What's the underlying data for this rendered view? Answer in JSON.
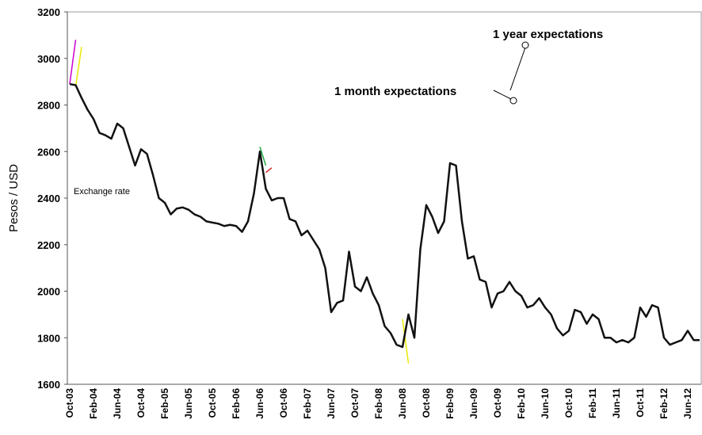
{
  "chart_data": {
    "type": "line",
    "y_label": "Pesos / USD",
    "annotations": [
      "Exchange rate",
      "1 year expectations",
      "1 month expectations"
    ],
    "ylim": [
      1600,
      3200
    ],
    "yticks": [
      1600,
      1800,
      2000,
      2200,
      2400,
      2600,
      2800,
      3000,
      3200
    ],
    "categories": [
      "Oct-03",
      null,
      null,
      null,
      "Feb-04",
      null,
      null,
      null,
      "Jun-04",
      null,
      null,
      null,
      "Oct-04",
      null,
      null,
      null,
      "Feb-05",
      null,
      null,
      null,
      "Jun-05",
      null,
      null,
      null,
      "Oct-05",
      null,
      null,
      null,
      "Feb-06",
      null,
      null,
      null,
      "Jun-06",
      null,
      null,
      null,
      "Oct-06",
      null,
      null,
      null,
      "Feb-07",
      null,
      null,
      null,
      "Jun-07",
      null,
      null,
      null,
      "Oct-07",
      null,
      null,
      null,
      "Feb-08",
      null,
      null,
      null,
      "Jun-08",
      null,
      null,
      null,
      "Oct-08",
      null,
      null,
      null,
      "Feb-09",
      null,
      null,
      null,
      "Jun-09",
      null,
      null,
      null,
      "Oct-09",
      null,
      null,
      null,
      "Feb-10",
      null,
      null,
      null,
      "Jun-10",
      null,
      null,
      null,
      "Oct-10",
      null,
      null,
      null,
      "Feb-11",
      null,
      null,
      null,
      "Jun-11",
      null,
      null,
      null,
      "Oct-11",
      null,
      null,
      null,
      "Feb-12",
      null,
      null,
      null,
      "Jun-12",
      null,
      null
    ],
    "series": [
      {
        "color": "#cc00cc",
        "width": 1.5,
        "values": [
          2890,
          3080,
          null,
          null,
          null,
          null,
          null,
          null,
          null,
          null,
          null,
          null,
          null,
          null,
          null,
          null,
          null,
          null,
          null,
          null,
          null,
          null,
          null,
          null,
          null,
          null,
          null,
          null,
          null,
          null,
          null,
          null,
          null,
          null,
          null,
          null,
          null,
          null,
          null,
          null,
          null,
          null,
          null,
          null,
          null,
          null,
          null,
          null,
          null,
          null,
          null,
          null,
          null,
          null,
          null,
          null,
          null,
          null,
          null,
          null,
          null,
          null,
          null,
          null,
          null,
          null,
          null,
          null,
          null,
          null,
          null,
          null,
          null,
          null,
          null,
          null,
          null,
          null,
          null,
          null,
          null,
          null,
          null,
          null,
          null,
          null,
          null,
          null,
          null,
          null,
          null,
          null,
          null,
          null,
          null,
          null,
          null,
          null,
          null,
          null,
          null,
          null,
          null,
          null,
          null,
          null,
          null
        ]
      },
      {
        "color": "#e8e800",
        "width": 1.5,
        "values": [
          null,
          2880,
          3050,
          null,
          null,
          null,
          null,
          null,
          null,
          null,
          null,
          null,
          null,
          null,
          null,
          null,
          null,
          null,
          null,
          null,
          null,
          null,
          null,
          null,
          null,
          null,
          null,
          null,
          null,
          null,
          null,
          null,
          null,
          null,
          null,
          null,
          null,
          null,
          null,
          null,
          null,
          null,
          null,
          null,
          null,
          null,
          null,
          null,
          null,
          null,
          null,
          null,
          null,
          null,
          null,
          null,
          null,
          null,
          null,
          null,
          null,
          null,
          null,
          null,
          null,
          null,
          null,
          null,
          null,
          null,
          null,
          null,
          null,
          null,
          null,
          null,
          null,
          null,
          null,
          null,
          null,
          null,
          null,
          null,
          null,
          null,
          null,
          null,
          null,
          null,
          null,
          null,
          null,
          null,
          null,
          null,
          null,
          null,
          null,
          null,
          null,
          null,
          null,
          null,
          null,
          null,
          null
        ]
      },
      {
        "color": "#22aa44",
        "width": 1.5,
        "values": [
          null,
          null,
          null,
          null,
          null,
          null,
          null,
          null,
          null,
          null,
          null,
          null,
          null,
          null,
          null,
          null,
          null,
          null,
          null,
          null,
          null,
          null,
          null,
          null,
          null,
          null,
          null,
          null,
          null,
          null,
          null,
          null,
          2620,
          2540,
          null,
          null,
          null,
          null,
          null,
          null,
          null,
          null,
          null,
          null,
          null,
          null,
          null,
          null,
          null,
          null,
          null,
          null,
          null,
          null,
          null,
          null,
          null,
          null,
          null,
          null,
          null,
          null,
          null,
          null,
          null,
          null,
          null,
          null,
          null,
          null,
          null,
          null,
          null,
          null,
          null,
          null,
          null,
          null,
          null,
          null,
          null,
          null,
          null,
          null,
          null,
          null,
          null,
          null,
          null,
          null,
          null,
          null,
          null,
          null,
          null,
          null,
          null,
          null,
          null,
          null,
          null,
          null,
          null,
          null,
          null,
          null,
          null
        ]
      },
      {
        "color": "#dd2222",
        "width": 1.5,
        "values": [
          null,
          null,
          null,
          null,
          null,
          null,
          null,
          null,
          null,
          null,
          null,
          null,
          null,
          null,
          null,
          null,
          null,
          null,
          null,
          null,
          null,
          null,
          null,
          null,
          null,
          null,
          null,
          null,
          null,
          null,
          null,
          null,
          null,
          2510,
          2530,
          null,
          null,
          null,
          null,
          null,
          null,
          null,
          null,
          null,
          null,
          null,
          null,
          null,
          null,
          null,
          null,
          null,
          null,
          null,
          null,
          null,
          null,
          null,
          null,
          null,
          null,
          null,
          null,
          null,
          null,
          null,
          null,
          null,
          null,
          null,
          null,
          null,
          null,
          null,
          null,
          null,
          null,
          null,
          null,
          null,
          null,
          null,
          null,
          null,
          null,
          null,
          null,
          null,
          null,
          null,
          null,
          null,
          null,
          null,
          null,
          null,
          null,
          null,
          null,
          null,
          null,
          null,
          null,
          null,
          null,
          null,
          null
        ]
      },
      {
        "color": "#e8e800",
        "width": 1.5,
        "values": [
          null,
          null,
          null,
          null,
          null,
          null,
          null,
          null,
          null,
          null,
          null,
          null,
          null,
          null,
          null,
          null,
          null,
          null,
          null,
          null,
          null,
          null,
          null,
          null,
          null,
          null,
          null,
          null,
          null,
          null,
          null,
          null,
          null,
          null,
          null,
          null,
          null,
          null,
          null,
          null,
          null,
          null,
          null,
          null,
          null,
          null,
          null,
          null,
          null,
          null,
          null,
          null,
          null,
          null,
          null,
          null,
          1880,
          1690,
          null,
          null,
          null,
          null,
          null,
          null,
          null,
          null,
          null,
          null,
          null,
          null,
          null,
          null,
          null,
          null,
          null,
          null,
          null,
          null,
          null,
          null,
          null,
          null,
          null,
          null,
          null,
          null,
          null,
          null,
          null,
          null,
          null,
          null,
          null,
          null,
          null,
          null,
          null,
          null,
          null,
          null,
          null,
          null,
          null,
          null,
          null,
          null,
          null
        ]
      },
      {
        "color": "#111111",
        "width": 2.5,
        "values": [
          2890,
          2885,
          2830,
          2780,
          2740,
          2680,
          2670,
          2655,
          2720,
          2700,
          2620,
          2540,
          2610,
          2590,
          2500,
          2400,
          2380,
          2330,
          2355,
          2360,
          2350,
          2330,
          2320,
          2300,
          2295,
          2290,
          2280,
          2285,
          2280,
          2255,
          2300,
          2420,
          2600,
          2440,
          2390,
          2400,
          2400,
          2310,
          2300,
          2240,
          2260,
          2220,
          2180,
          2100,
          1910,
          1950,
          1960,
          2170,
          2020,
          2000,
          2060,
          1990,
          1940,
          1850,
          1820,
          1770,
          1760,
          1900,
          1800,
          2180,
          2370,
          2320,
          2250,
          2300,
          2550,
          2540,
          2300,
          2140,
          2150,
          2050,
          2040,
          1930,
          1990,
          2000,
          2040,
          2000,
          1980,
          1930,
          1940,
          1970,
          1930,
          1900,
          1840,
          1810,
          1830,
          1920,
          1910,
          1860,
          1900,
          1880,
          1800,
          1800,
          1780,
          1790,
          1780,
          1800,
          1930,
          1890,
          1940,
          1930,
          1800,
          1770,
          1780,
          1790,
          1830,
          1790,
          1790
        ]
      }
    ]
  }
}
